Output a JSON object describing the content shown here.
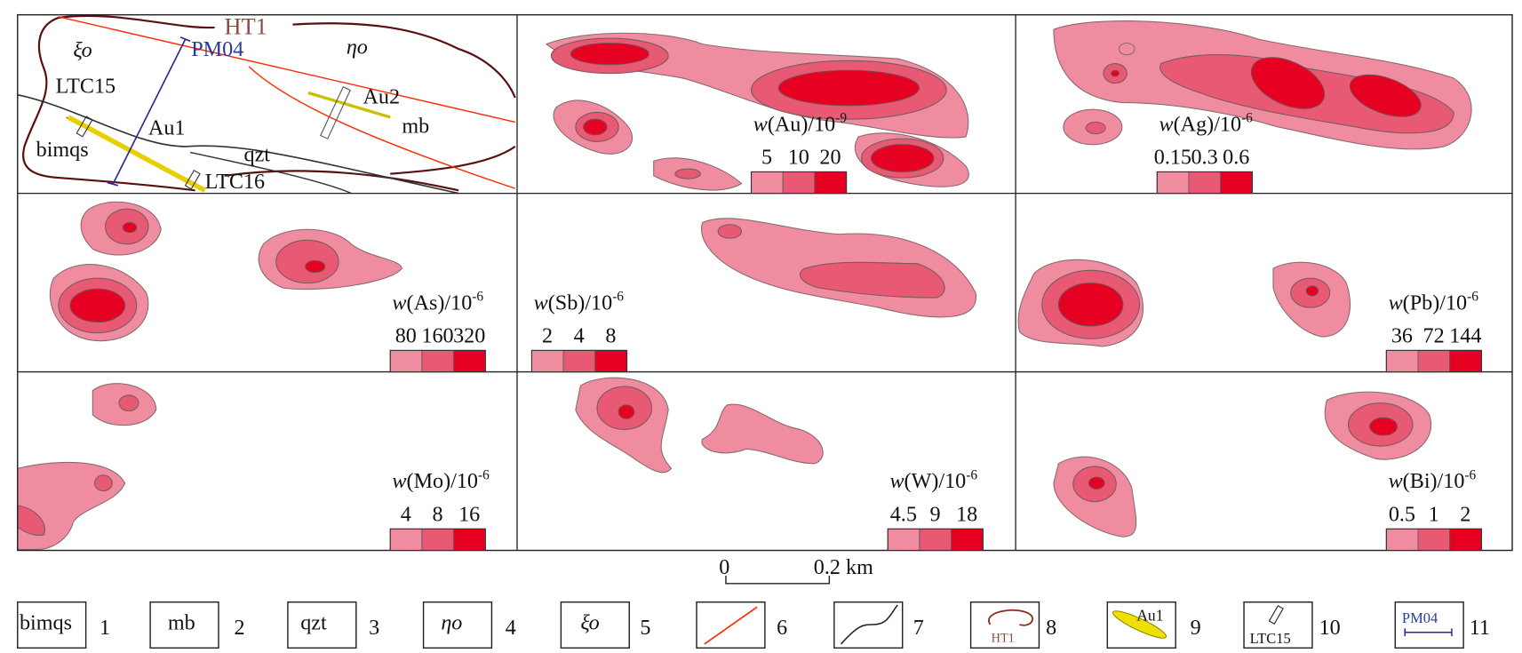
{
  "colors": {
    "low": "#f08ca0",
    "mid": "#e85a73",
    "high": "#e60021",
    "fault": "#ff2a00",
    "boundary": "#5a1010",
    "profile": "#2a2a9a"
  },
  "geology_panel": {
    "labels": {
      "ht1": "HT1",
      "pm04": "PM04",
      "xi_o": "ξο",
      "eta_o": "ηο",
      "ltc15": "LTC15",
      "au2": "Au2",
      "au1": "Au1",
      "mb": "mb",
      "bimqs": "bimqs",
      "qzt": "qzt",
      "ltc16": "LTC16"
    }
  },
  "panels": [
    {
      "element": "Au",
      "title_prefix": "w",
      "title_rest": "(Au)/10",
      "exponent": "-9",
      "thresholds": [
        "5",
        "10",
        "20"
      ]
    },
    {
      "element": "Ag",
      "title_prefix": "w",
      "title_rest": "(Ag)/10",
      "exponent": "-6",
      "thresholds": [
        "0.15",
        "0.3",
        "0.6"
      ]
    },
    {
      "element": "As",
      "title_prefix": "w",
      "title_rest": "(As)/10",
      "exponent": "-6",
      "thresholds": [
        "80",
        "160",
        "320"
      ]
    },
    {
      "element": "Sb",
      "title_prefix": "w",
      "title_rest": "(Sb)/10",
      "exponent": "-6",
      "thresholds": [
        "2",
        "4",
        "8"
      ]
    },
    {
      "element": "Pb",
      "title_prefix": "w",
      "title_rest": "(Pb)/10",
      "exponent": "-6",
      "thresholds": [
        "36",
        "72",
        "144"
      ]
    },
    {
      "element": "Mo",
      "title_prefix": "w",
      "title_rest": "(Mo)/10",
      "exponent": "-6",
      "thresholds": [
        "4",
        "8",
        "16"
      ]
    },
    {
      "element": "W",
      "title_prefix": "w",
      "title_rest": "(W)/10",
      "exponent": "-6",
      "thresholds": [
        "4.5",
        "9",
        "18"
      ]
    },
    {
      "element": "Bi",
      "title_prefix": "w",
      "title_rest": "(Bi)/10",
      "exponent": "-6",
      "thresholds": [
        "0.5",
        "1",
        "2"
      ]
    }
  ],
  "scale_bar": {
    "start": "0",
    "end": "0.2 km"
  },
  "legend": [
    {
      "num": "1",
      "text": "bimqs"
    },
    {
      "num": "2",
      "text": "mb"
    },
    {
      "num": "3",
      "text": "qzt"
    },
    {
      "num": "4",
      "text": "ηο"
    },
    {
      "num": "5",
      "text": "ξο"
    },
    {
      "num": "6",
      "text": ""
    },
    {
      "num": "7",
      "text": ""
    },
    {
      "num": "8",
      "text": "HT1"
    },
    {
      "num": "9",
      "text": "Au1"
    },
    {
      "num": "10",
      "text": "LTC15"
    },
    {
      "num": "11",
      "text": "PM04"
    }
  ]
}
